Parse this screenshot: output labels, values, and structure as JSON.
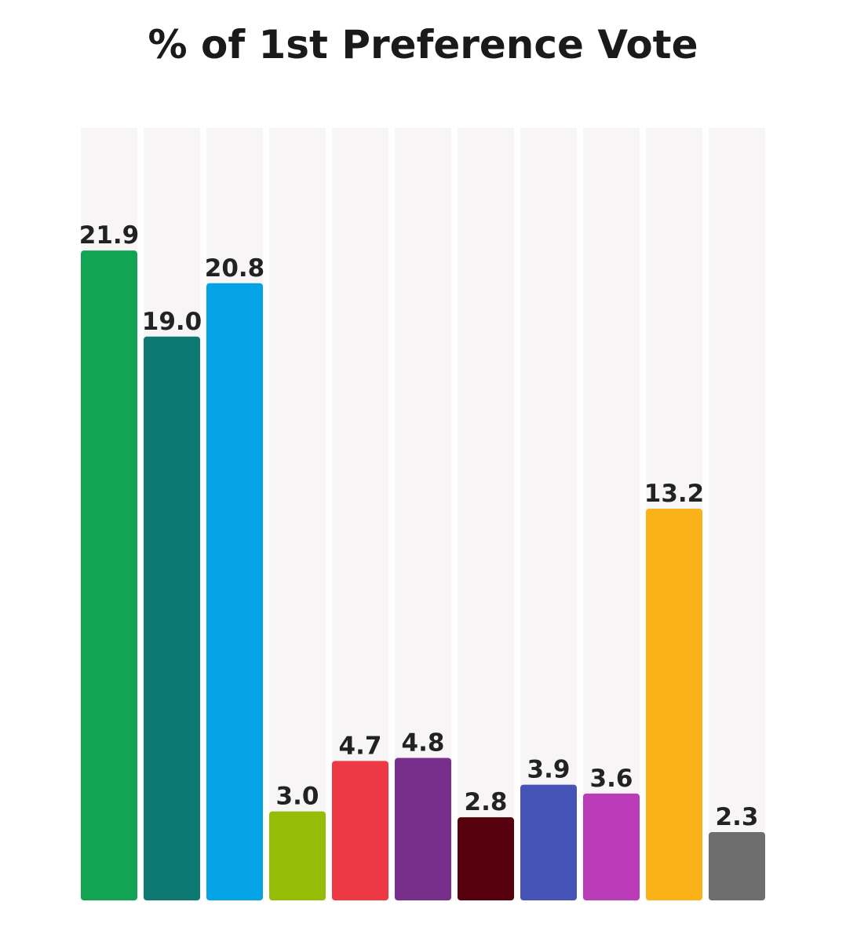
{
  "chart_data": {
    "type": "bar",
    "title": "% of 1st Preference Vote",
    "xlabel": "",
    "ylabel": "",
    "ylim": [
      0,
      30
    ],
    "grid": false,
    "legend": "none",
    "values": [
      21.9,
      19.0,
      20.8,
      3.0,
      4.7,
      4.8,
      2.8,
      3.9,
      3.6,
      13.2,
      2.3
    ],
    "labels": [
      "21.9",
      "19.0",
      "20.8",
      "3.0",
      "4.7",
      "4.8",
      "2.8",
      "3.9",
      "3.6",
      "13.2",
      "2.3"
    ],
    "colors": [
      "#12A452",
      "#0E7872",
      "#03A3E6",
      "#95BC06",
      "#EE3843",
      "#782E8B",
      "#55000C",
      "#4654B8",
      "#BB3CB8",
      "#FBB118",
      "#6E6E6E"
    ],
    "track_color": "#F7F5F5",
    "label_color": "#222222"
  }
}
